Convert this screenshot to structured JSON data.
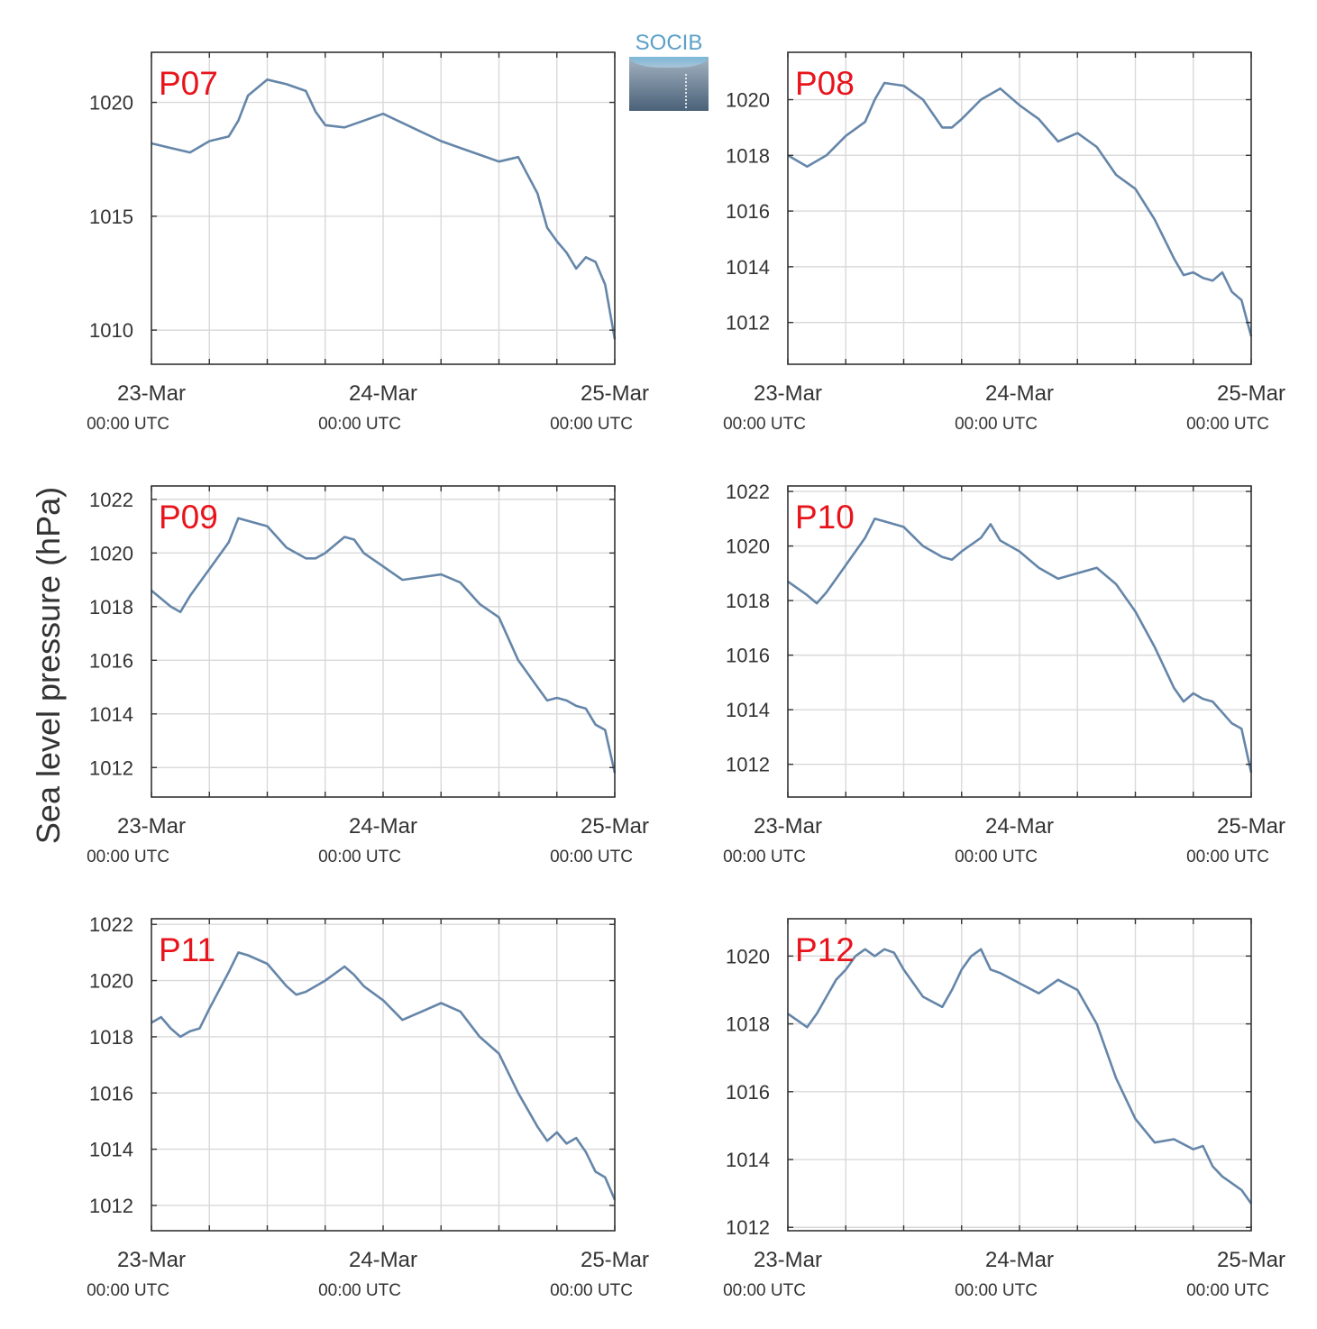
{
  "logo": {
    "text": "SOCIB"
  },
  "colors": {
    "line": "#6586a9",
    "station_label": "#e8141c",
    "grid": "#d9d9d9",
    "axis": "#333333"
  },
  "chart_data": [
    {
      "type": "line",
      "station": "P07",
      "ylabel": "Sea level pressure (hPa)",
      "ylim": [
        1008.5,
        1022.2
      ],
      "yticks": [
        1010,
        1015,
        1020
      ],
      "x_ticks": [
        {
          "date": "23-Mar",
          "time": "00:00 UTC"
        },
        {
          "date": "24-Mar",
          "time": "00:00 UTC"
        },
        {
          "date": "25-Mar",
          "time": "00:00 UTC"
        }
      ],
      "x_hours": [
        0,
        2,
        4,
        6,
        8,
        9,
        10,
        12,
        14,
        16,
        17,
        18,
        20,
        22,
        24,
        26,
        28,
        30,
        32,
        34,
        36,
        38,
        40,
        41,
        42,
        43,
        44,
        45,
        46,
        47,
        48
      ],
      "y_hpa": [
        1018.2,
        1018.0,
        1017.8,
        1018.3,
        1018.5,
        1019.2,
        1020.3,
        1021.0,
        1020.8,
        1020.5,
        1019.6,
        1019.0,
        1018.9,
        1019.2,
        1019.5,
        1019.1,
        1018.7,
        1018.3,
        1018.0,
        1017.7,
        1017.4,
        1017.6,
        1016.0,
        1014.5,
        1013.9,
        1013.4,
        1012.7,
        1013.2,
        1013.0,
        1012.0,
        1009.6
      ],
      "grid": true
    },
    {
      "type": "line",
      "station": "P08",
      "ylim": [
        1010.5,
        1021.7
      ],
      "yticks": [
        1012,
        1014,
        1016,
        1018,
        1020
      ],
      "x_ticks": [
        {
          "date": "23-Mar",
          "time": "00:00 UTC"
        },
        {
          "date": "24-Mar",
          "time": "00:00 UTC"
        },
        {
          "date": "25-Mar",
          "time": "00:00 UTC"
        }
      ],
      "x_hours": [
        0,
        2,
        4,
        6,
        8,
        9,
        10,
        12,
        14,
        16,
        17,
        18,
        20,
        22,
        24,
        26,
        28,
        30,
        32,
        34,
        36,
        38,
        40,
        41,
        42,
        43,
        44,
        45,
        46,
        47,
        48
      ],
      "y_hpa": [
        1018.0,
        1017.6,
        1018.0,
        1018.7,
        1019.2,
        1020.0,
        1020.6,
        1020.5,
        1020.0,
        1019.0,
        1019.0,
        1019.3,
        1020.0,
        1020.4,
        1019.8,
        1019.3,
        1018.5,
        1018.8,
        1018.3,
        1017.3,
        1016.8,
        1015.7,
        1014.3,
        1013.7,
        1013.8,
        1013.6,
        1013.5,
        1013.8,
        1013.1,
        1012.8,
        1011.5
      ],
      "grid": true
    },
    {
      "type": "line",
      "station": "P09",
      "ylim": [
        1010.9,
        1022.5
      ],
      "yticks": [
        1012,
        1014,
        1016,
        1018,
        1020,
        1022
      ],
      "x_ticks": [
        {
          "date": "23-Mar",
          "time": "00:00 UTC"
        },
        {
          "date": "24-Mar",
          "time": "00:00 UTC"
        },
        {
          "date": "25-Mar",
          "time": "00:00 UTC"
        }
      ],
      "x_hours": [
        0,
        2,
        3,
        4,
        6,
        8,
        9,
        10,
        12,
        14,
        16,
        17,
        18,
        20,
        21,
        22,
        24,
        26,
        28,
        30,
        32,
        34,
        36,
        38,
        40,
        41,
        42,
        43,
        44,
        45,
        46,
        47,
        48
      ],
      "y_hpa": [
        1018.6,
        1018.0,
        1017.8,
        1018.4,
        1019.4,
        1020.4,
        1021.3,
        1021.2,
        1021.0,
        1020.2,
        1019.8,
        1019.8,
        1020.0,
        1020.6,
        1020.5,
        1020.0,
        1019.5,
        1019.0,
        1019.1,
        1019.2,
        1018.9,
        1018.1,
        1017.6,
        1016.0,
        1015.0,
        1014.5,
        1014.6,
        1014.5,
        1014.3,
        1014.2,
        1013.6,
        1013.4,
        1011.8
      ],
      "grid": true
    },
    {
      "type": "line",
      "station": "P10",
      "ylim": [
        1010.8,
        1022.2
      ],
      "yticks": [
        1012,
        1014,
        1016,
        1018,
        1020,
        1022
      ],
      "x_hours": [
        0,
        2,
        3,
        4,
        6,
        8,
        9,
        10,
        12,
        14,
        16,
        17,
        18,
        20,
        21,
        22,
        24,
        26,
        28,
        30,
        32,
        34,
        36,
        38,
        40,
        41,
        42,
        43,
        44,
        45,
        46,
        47,
        48
      ],
      "y_hpa": [
        1018.7,
        1018.2,
        1017.9,
        1018.3,
        1019.3,
        1020.3,
        1021.0,
        1020.9,
        1020.7,
        1020.0,
        1019.6,
        1019.5,
        1019.8,
        1020.3,
        1020.8,
        1020.2,
        1019.8,
        1019.2,
        1018.8,
        1019.0,
        1019.2,
        1018.6,
        1017.6,
        1016.3,
        1014.8,
        1014.3,
        1014.6,
        1014.4,
        1014.3,
        1013.9,
        1013.5,
        1013.3,
        1011.7
      ],
      "x_ticks": [
        {
          "date": "23-Mar",
          "time": "00:00 UTC"
        },
        {
          "date": "24-Mar",
          "time": "00:00 UTC"
        },
        {
          "date": "25-Mar",
          "time": "00:00 UTC"
        }
      ],
      "grid": true
    },
    {
      "type": "line",
      "station": "P11",
      "ylim": [
        1011.1,
        1022.2
      ],
      "yticks": [
        1012,
        1014,
        1016,
        1018,
        1020,
        1022
      ],
      "x_ticks": [
        {
          "date": "23-Mar",
          "time": "00:00 UTC"
        },
        {
          "date": "24-Mar",
          "time": "00:00 UTC"
        },
        {
          "date": "25-Mar",
          "time": "00:00 UTC"
        }
      ],
      "x_hours": [
        0,
        1,
        2,
        3,
        4,
        5,
        6,
        8,
        9,
        10,
        12,
        14,
        15,
        16,
        18,
        20,
        21,
        22,
        24,
        26,
        28,
        30,
        32,
        34,
        36,
        38,
        40,
        41,
        42,
        43,
        44,
        45,
        46,
        47,
        48
      ],
      "y_hpa": [
        1018.5,
        1018.7,
        1018.3,
        1018.0,
        1018.2,
        1018.3,
        1019.0,
        1020.3,
        1021.0,
        1020.9,
        1020.6,
        1019.8,
        1019.5,
        1019.6,
        1020.0,
        1020.5,
        1020.2,
        1019.8,
        1019.3,
        1018.6,
        1018.9,
        1019.2,
        1018.9,
        1018.0,
        1017.4,
        1016.0,
        1014.8,
        1014.3,
        1014.6,
        1014.2,
        1014.4,
        1013.9,
        1013.2,
        1013.0,
        1012.2
      ],
      "grid": true
    },
    {
      "type": "line",
      "station": "P12",
      "ylim": [
        1011.9,
        1021.1
      ],
      "yticks": [
        1012,
        1014,
        1016,
        1018,
        1020
      ],
      "x_ticks": [
        {
          "date": "23-Mar",
          "time": "00:00 UTC"
        },
        {
          "date": "24-Mar",
          "time": "00:00 UTC"
        },
        {
          "date": "25-Mar",
          "time": "00:00 UTC"
        }
      ],
      "x_hours": [
        0,
        2,
        3,
        4,
        5,
        6,
        7,
        8,
        9,
        10,
        11,
        12,
        14,
        16,
        17,
        18,
        19,
        20,
        21,
        22,
        24,
        26,
        28,
        30,
        32,
        34,
        36,
        38,
        40,
        42,
        43,
        44,
        45,
        46,
        47,
        48
      ],
      "y_hpa": [
        1018.3,
        1017.9,
        1018.3,
        1018.8,
        1019.3,
        1019.6,
        1020.0,
        1020.2,
        1020.0,
        1020.2,
        1020.1,
        1019.6,
        1018.8,
        1018.5,
        1019.0,
        1019.6,
        1020.0,
        1020.2,
        1019.6,
        1019.5,
        1019.2,
        1018.9,
        1019.3,
        1019.0,
        1018.0,
        1016.4,
        1015.2,
        1014.5,
        1014.6,
        1014.3,
        1014.4,
        1013.8,
        1013.5,
        1013.3,
        1013.1,
        1012.7
      ],
      "grid": true
    }
  ]
}
